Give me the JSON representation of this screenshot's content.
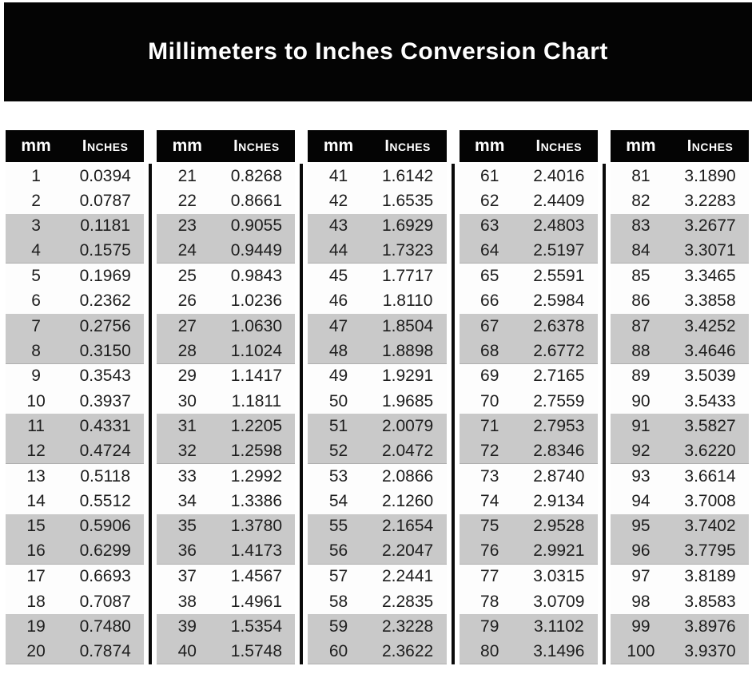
{
  "title": "Millimeters to Inches Conversion Chart",
  "columns": {
    "mm_label": "mm",
    "inches_label": "Inches"
  },
  "colors": {
    "banner_bg": "#040404",
    "header_bg": "#040404",
    "header_text": "#ffffff",
    "row_shaded": "#c9c9c9",
    "row_plain": "#fdfdfd",
    "value_text": "#1e1e1e"
  },
  "tables": [
    {
      "rows": [
        {
          "mm": "1",
          "inches": "0.0394"
        },
        {
          "mm": "2",
          "inches": "0.0787"
        },
        {
          "mm": "3",
          "inches": "0.1181"
        },
        {
          "mm": "4",
          "inches": "0.1575"
        },
        {
          "mm": "5",
          "inches": "0.1969"
        },
        {
          "mm": "6",
          "inches": "0.2362"
        },
        {
          "mm": "7",
          "inches": "0.2756"
        },
        {
          "mm": "8",
          "inches": "0.3150"
        },
        {
          "mm": "9",
          "inches": "0.3543"
        },
        {
          "mm": "10",
          "inches": "0.3937"
        },
        {
          "mm": "11",
          "inches": "0.4331"
        },
        {
          "mm": "12",
          "inches": "0.4724"
        },
        {
          "mm": "13",
          "inches": "0.5118"
        },
        {
          "mm": "14",
          "inches": "0.5512"
        },
        {
          "mm": "15",
          "inches": "0.5906"
        },
        {
          "mm": "16",
          "inches": "0.6299"
        },
        {
          "mm": "17",
          "inches": "0.6693"
        },
        {
          "mm": "18",
          "inches": "0.7087"
        },
        {
          "mm": "19",
          "inches": "0.7480"
        },
        {
          "mm": "20",
          "inches": "0.7874"
        }
      ]
    },
    {
      "rows": [
        {
          "mm": "21",
          "inches": "0.8268"
        },
        {
          "mm": "22",
          "inches": "0.8661"
        },
        {
          "mm": "23",
          "inches": "0.9055"
        },
        {
          "mm": "24",
          "inches": "0.9449"
        },
        {
          "mm": "25",
          "inches": "0.9843"
        },
        {
          "mm": "26",
          "inches": "1.0236"
        },
        {
          "mm": "27",
          "inches": "1.0630"
        },
        {
          "mm": "28",
          "inches": "1.1024"
        },
        {
          "mm": "29",
          "inches": "1.1417"
        },
        {
          "mm": "30",
          "inches": "1.1811"
        },
        {
          "mm": "31",
          "inches": "1.2205"
        },
        {
          "mm": "32",
          "inches": "1.2598"
        },
        {
          "mm": "33",
          "inches": "1.2992"
        },
        {
          "mm": "34",
          "inches": "1.3386"
        },
        {
          "mm": "35",
          "inches": "1.3780"
        },
        {
          "mm": "36",
          "inches": "1.4173"
        },
        {
          "mm": "37",
          "inches": "1.4567"
        },
        {
          "mm": "38",
          "inches": "1.4961"
        },
        {
          "mm": "39",
          "inches": "1.5354"
        },
        {
          "mm": "40",
          "inches": "1.5748"
        }
      ]
    },
    {
      "rows": [
        {
          "mm": "41",
          "inches": "1.6142"
        },
        {
          "mm": "42",
          "inches": "1.6535"
        },
        {
          "mm": "43",
          "inches": "1.6929"
        },
        {
          "mm": "44",
          "inches": "1.7323"
        },
        {
          "mm": "45",
          "inches": "1.7717"
        },
        {
          "mm": "46",
          "inches": "1.8110"
        },
        {
          "mm": "47",
          "inches": "1.8504"
        },
        {
          "mm": "48",
          "inches": "1.8898"
        },
        {
          "mm": "49",
          "inches": "1.9291"
        },
        {
          "mm": "50",
          "inches": "1.9685"
        },
        {
          "mm": "51",
          "inches": "2.0079"
        },
        {
          "mm": "52",
          "inches": "2.0472"
        },
        {
          "mm": "53",
          "inches": "2.0866"
        },
        {
          "mm": "54",
          "inches": "2.1260"
        },
        {
          "mm": "55",
          "inches": "2.1654"
        },
        {
          "mm": "56",
          "inches": "2.2047"
        },
        {
          "mm": "57",
          "inches": "2.2441"
        },
        {
          "mm": "58",
          "inches": "2.2835"
        },
        {
          "mm": "59",
          "inches": "2.3228"
        },
        {
          "mm": "60",
          "inches": "2.3622"
        }
      ]
    },
    {
      "rows": [
        {
          "mm": "61",
          "inches": "2.4016"
        },
        {
          "mm": "62",
          "inches": "2.4409"
        },
        {
          "mm": "63",
          "inches": "2.4803"
        },
        {
          "mm": "64",
          "inches": "2.5197"
        },
        {
          "mm": "65",
          "inches": "2.5591"
        },
        {
          "mm": "66",
          "inches": "2.5984"
        },
        {
          "mm": "67",
          "inches": "2.6378"
        },
        {
          "mm": "68",
          "inches": "2.6772"
        },
        {
          "mm": "69",
          "inches": "2.7165"
        },
        {
          "mm": "70",
          "inches": "2.7559"
        },
        {
          "mm": "71",
          "inches": "2.7953"
        },
        {
          "mm": "72",
          "inches": "2.8346"
        },
        {
          "mm": "73",
          "inches": "2.8740"
        },
        {
          "mm": "74",
          "inches": "2.9134"
        },
        {
          "mm": "75",
          "inches": "2.9528"
        },
        {
          "mm": "76",
          "inches": "2.9921"
        },
        {
          "mm": "77",
          "inches": "3.0315"
        },
        {
          "mm": "78",
          "inches": "3.0709"
        },
        {
          "mm": "79",
          "inches": "3.1102"
        },
        {
          "mm": "80",
          "inches": "3.1496"
        }
      ]
    },
    {
      "rows": [
        {
          "mm": "81",
          "inches": "3.1890"
        },
        {
          "mm": "82",
          "inches": "3.2283"
        },
        {
          "mm": "83",
          "inches": "3.2677"
        },
        {
          "mm": "84",
          "inches": "3.3071"
        },
        {
          "mm": "85",
          "inches": "3.3465"
        },
        {
          "mm": "86",
          "inches": "3.3858"
        },
        {
          "mm": "87",
          "inches": "3.4252"
        },
        {
          "mm": "88",
          "inches": "3.4646"
        },
        {
          "mm": "89",
          "inches": "3.5039"
        },
        {
          "mm": "90",
          "inches": "3.5433"
        },
        {
          "mm": "91",
          "inches": "3.5827"
        },
        {
          "mm": "92",
          "inches": "3.6220"
        },
        {
          "mm": "93",
          "inches": "3.6614"
        },
        {
          "mm": "94",
          "inches": "3.7008"
        },
        {
          "mm": "95",
          "inches": "3.7402"
        },
        {
          "mm": "96",
          "inches": "3.7795"
        },
        {
          "mm": "97",
          "inches": "3.8189"
        },
        {
          "mm": "98",
          "inches": "3.8583"
        },
        {
          "mm": "99",
          "inches": "3.8976"
        },
        {
          "mm": "100",
          "inches": "3.9370"
        }
      ]
    }
  ]
}
